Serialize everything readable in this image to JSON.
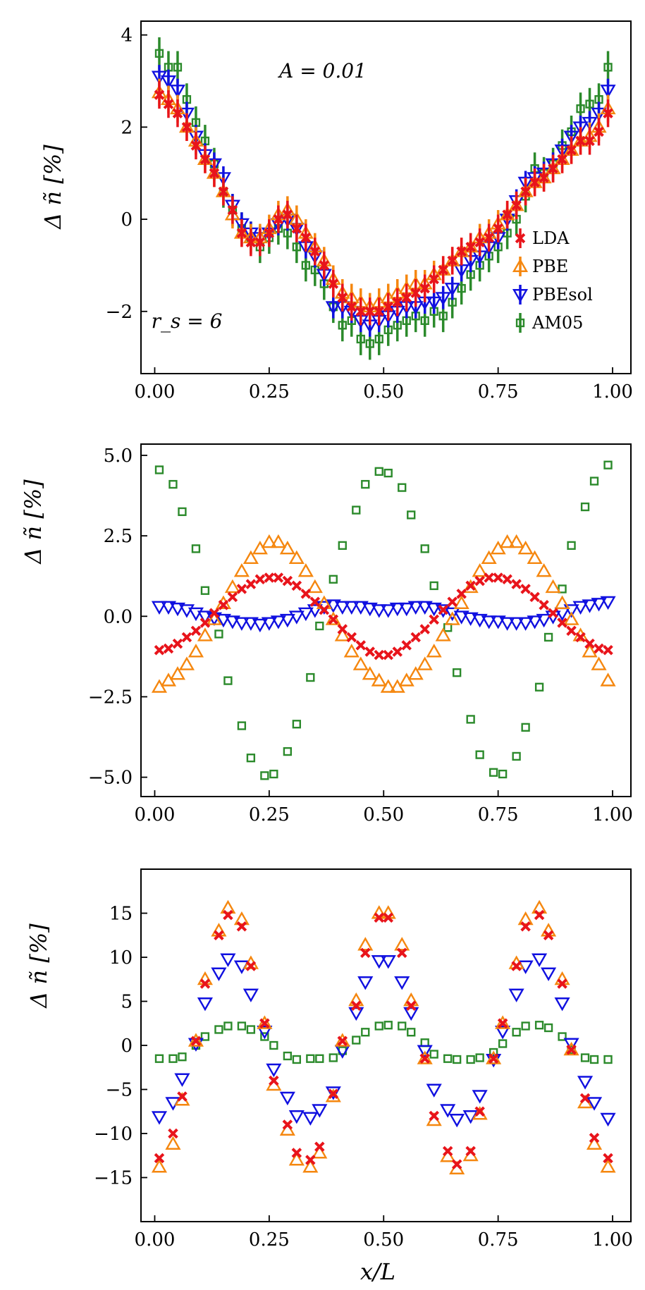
{
  "chart_data": [
    {
      "type": "scatter",
      "panel": "top",
      "ylabel": "Δ ñ [%]",
      "xlabel": "",
      "xlim": [
        -0.03,
        1.04
      ],
      "ylim": [
        -3.35,
        4.3
      ],
      "xticks": [
        0,
        0.25,
        0.5,
        0.75,
        1
      ],
      "xtick_labels": [
        "0.00",
        "0.25",
        "0.50",
        "0.75",
        "1.00"
      ],
      "yticks": [
        -2,
        0,
        2,
        4
      ],
      "ytick_labels": [
        "−2",
        "0",
        "2",
        "4"
      ],
      "annotations": [
        "A = 0.01",
        "r_s = 6"
      ],
      "legend": {
        "placement": "right",
        "entries": [
          "LDA",
          "PBE",
          "PBEsol",
          "AM05"
        ]
      },
      "error_bars": true,
      "x": [
        0.01,
        0.03,
        0.05,
        0.07,
        0.09,
        0.11,
        0.13,
        0.15,
        0.17,
        0.19,
        0.21,
        0.23,
        0.25,
        0.27,
        0.29,
        0.31,
        0.33,
        0.35,
        0.37,
        0.39,
        0.41,
        0.43,
        0.45,
        0.47,
        0.49,
        0.51,
        0.53,
        0.55,
        0.57,
        0.59,
        0.61,
        0.63,
        0.65,
        0.67,
        0.69,
        0.71,
        0.73,
        0.75,
        0.77,
        0.79,
        0.81,
        0.83,
        0.85,
        0.87,
        0.89,
        0.91,
        0.93,
        0.95,
        0.97,
        0.99
      ],
      "series": [
        {
          "name": "LDA",
          "marker": "x",
          "color": "#e8141b",
          "errors": 0.3,
          "values": [
            2.7,
            2.5,
            2.3,
            2.0,
            1.6,
            1.3,
            1.0,
            0.6,
            0.2,
            -0.3,
            -0.5,
            -0.5,
            -0.3,
            0.0,
            0.1,
            -0.2,
            -0.4,
            -0.7,
            -1.0,
            -1.4,
            -1.7,
            -1.9,
            -2.0,
            -2.0,
            -2.0,
            -1.9,
            -1.8,
            -1.7,
            -1.6,
            -1.5,
            -1.3,
            -1.1,
            -0.9,
            -0.7,
            -0.6,
            -0.5,
            -0.4,
            -0.2,
            0.1,
            0.3,
            0.6,
            0.8,
            0.9,
            1.1,
            1.3,
            1.5,
            1.7,
            1.7,
            1.9,
            2.3
          ]
        },
        {
          "name": "PBE",
          "marker": "triangle-up",
          "color": "#f5870f",
          "errors": 0.3,
          "values": [
            2.75,
            2.6,
            2.4,
            2.0,
            1.7,
            1.3,
            1.0,
            0.6,
            0.1,
            -0.3,
            -0.4,
            -0.4,
            -0.2,
            0.1,
            0.2,
            0.0,
            -0.3,
            -0.6,
            -0.9,
            -1.3,
            -1.6,
            -1.7,
            -1.8,
            -1.9,
            -1.8,
            -1.7,
            -1.6,
            -1.5,
            -1.4,
            -1.4,
            -1.2,
            -1.1,
            -0.9,
            -0.7,
            -0.6,
            -0.4,
            -0.3,
            -0.1,
            0.1,
            0.3,
            0.6,
            0.8,
            0.9,
            1.1,
            1.3,
            1.5,
            1.7,
            1.8,
            2.0,
            2.4
          ]
        },
        {
          "name": "PBEsol",
          "marker": "triangle-down",
          "color": "#1010e0",
          "errors": 0.25,
          "values": [
            3.1,
            3.0,
            2.8,
            2.3,
            1.8,
            1.4,
            1.2,
            0.9,
            0.3,
            -0.1,
            -0.3,
            -0.4,
            -0.3,
            -0.1,
            0.0,
            -0.2,
            -0.6,
            -0.8,
            -1.2,
            -1.9,
            -1.9,
            -2.0,
            -2.2,
            -2.3,
            -2.2,
            -2.1,
            -2.0,
            -1.9,
            -1.9,
            -1.8,
            -1.8,
            -1.7,
            -1.5,
            -1.1,
            -0.9,
            -0.8,
            -0.6,
            -0.4,
            0.0,
            0.4,
            0.8,
            0.9,
            1.0,
            1.2,
            1.5,
            1.8,
            2.0,
            2.1,
            2.3,
            2.8
          ]
        },
        {
          "name": "AM05",
          "marker": "square",
          "color": "#2b8a2b",
          "errors": 0.35,
          "values": [
            3.6,
            3.3,
            3.3,
            2.6,
            2.1,
            1.7,
            1.2,
            0.6,
            0.2,
            -0.2,
            -0.4,
            -0.6,
            -0.4,
            -0.2,
            -0.3,
            -0.6,
            -1.0,
            -1.1,
            -1.4,
            -1.9,
            -2.3,
            -2.2,
            -2.6,
            -2.7,
            -2.6,
            -2.4,
            -2.3,
            -2.2,
            -2.1,
            -2.2,
            -2.0,
            -2.1,
            -1.8,
            -1.5,
            -1.2,
            -1.0,
            -0.8,
            -0.6,
            -0.3,
            0.0,
            0.5,
            1.1,
            1.0,
            1.2,
            1.6,
            1.9,
            2.4,
            2.5,
            2.6,
            3.3
          ]
        }
      ]
    },
    {
      "type": "scatter",
      "panel": "middle",
      "ylabel": "Δ ñ [%]",
      "xlabel": "",
      "xlim": [
        -0.03,
        1.04
      ],
      "ylim": [
        -5.6,
        5.35
      ],
      "xticks": [
        0,
        0.25,
        0.5,
        0.75,
        1
      ],
      "xtick_labels": [
        "0.00",
        "0.25",
        "0.50",
        "0.75",
        "1.00"
      ],
      "yticks": [
        -5,
        -2.5,
        0,
        2.5,
        5
      ],
      "ytick_labels": [
        "−5.0",
        "−2.5",
        "0.0",
        "2.5",
        "5.0"
      ],
      "error_bars": false,
      "x": [
        0.01,
        0.03,
        0.05,
        0.07,
        0.09,
        0.11,
        0.13,
        0.15,
        0.17,
        0.19,
        0.21,
        0.23,
        0.25,
        0.27,
        0.29,
        0.31,
        0.33,
        0.35,
        0.37,
        0.39,
        0.41,
        0.43,
        0.45,
        0.47,
        0.49,
        0.51,
        0.53,
        0.55,
        0.57,
        0.59,
        0.61,
        0.63,
        0.65,
        0.67,
        0.69,
        0.71,
        0.73,
        0.75,
        0.77,
        0.79,
        0.81,
        0.83,
        0.85,
        0.87,
        0.89,
        0.91,
        0.93,
        0.95,
        0.97,
        0.99
      ],
      "series": [
        {
          "name": "LDA",
          "marker": "x",
          "color": "#e8141b",
          "values": [
            -1.05,
            -1.0,
            -0.85,
            -0.65,
            -0.45,
            -0.2,
            0.1,
            0.35,
            0.6,
            0.85,
            1.0,
            1.15,
            1.2,
            1.2,
            1.1,
            0.95,
            0.7,
            0.45,
            0.2,
            -0.1,
            -0.4,
            -0.65,
            -0.9,
            -1.1,
            -1.2,
            -1.2,
            -1.1,
            -0.9,
            -0.65,
            -0.4,
            -0.1,
            0.2,
            0.45,
            0.7,
            0.95,
            1.1,
            1.2,
            1.2,
            1.15,
            1.0,
            0.85,
            0.6,
            0.35,
            0.1,
            -0.2,
            -0.45,
            -0.65,
            -0.85,
            -1.0,
            -1.05
          ]
        },
        {
          "name": "PBE",
          "marker": "triangle-up",
          "color": "#f5870f",
          "values": [
            -2.2,
            -2.0,
            -1.8,
            -1.5,
            -1.1,
            -0.6,
            -0.1,
            0.4,
            0.9,
            1.4,
            1.8,
            2.1,
            2.3,
            2.3,
            2.1,
            1.8,
            1.4,
            0.9,
            0.4,
            -0.1,
            -0.6,
            -1.1,
            -1.5,
            -1.8,
            -2.0,
            -2.2,
            -2.2,
            -2.0,
            -1.8,
            -1.5,
            -1.1,
            -0.6,
            -0.1,
            0.4,
            0.9,
            1.4,
            1.8,
            2.1,
            2.3,
            2.3,
            2.1,
            1.8,
            1.4,
            0.9,
            0.4,
            -0.1,
            -0.6,
            -1.1,
            -1.5,
            -2.0
          ]
        },
        {
          "name": "PBEsol",
          "marker": "triangle-down",
          "color": "#1010e0",
          "values": [
            0.3,
            0.3,
            0.25,
            0.2,
            0.1,
            0.0,
            -0.05,
            -0.1,
            -0.15,
            -0.2,
            -0.2,
            -0.25,
            -0.2,
            -0.15,
            -0.1,
            0.0,
            0.1,
            0.2,
            0.3,
            0.35,
            0.3,
            0.3,
            0.3,
            0.25,
            0.2,
            0.2,
            0.25,
            0.25,
            0.3,
            0.3,
            0.25,
            0.2,
            0.1,
            0.0,
            -0.05,
            -0.1,
            -0.15,
            -0.15,
            -0.2,
            -0.2,
            -0.2,
            -0.15,
            -0.1,
            0.0,
            0.1,
            0.2,
            0.3,
            0.35,
            0.4,
            0.45
          ]
        },
        {
          "name": "AM05",
          "marker": "square",
          "color": "#2b8a2b",
          "values": [
            4.55,
            4.1,
            3.25,
            2.1,
            0.8,
            -0.55,
            -2.0,
            -3.4,
            -4.4,
            -4.95,
            -4.9,
            -4.2,
            -3.35,
            -1.9,
            -0.3,
            1.15,
            2.2,
            3.3,
            4.1,
            4.5,
            4.45,
            4.0,
            3.15,
            2.1,
            0.95,
            -0.35,
            -1.75,
            -3.2,
            -4.3,
            -4.85,
            -4.9,
            -4.35,
            -3.45,
            -2.2,
            -0.65,
            0.85,
            2.2,
            3.4,
            4.2,
            4.7
          ]
        }
      ],
      "am05_x": [
        0.01,
        0.04,
        0.06,
        0.09,
        0.11,
        0.14,
        0.16,
        0.19,
        0.21,
        0.24,
        0.26,
        0.29,
        0.31,
        0.34,
        0.36,
        0.39,
        0.41,
        0.44,
        0.46,
        0.49,
        0.51,
        0.54,
        0.56,
        0.59,
        0.61,
        0.64,
        0.66,
        0.69,
        0.71,
        0.74,
        0.76,
        0.79,
        0.81,
        0.84,
        0.86,
        0.89,
        0.91,
        0.94,
        0.96,
        0.99
      ]
    },
    {
      "type": "scatter",
      "panel": "bottom",
      "ylabel": "Δ ñ [%]",
      "xlabel": "x/L",
      "xlim": [
        -0.03,
        1.04
      ],
      "ylim": [
        -20,
        20
      ],
      "xticks": [
        0,
        0.25,
        0.5,
        0.75,
        1
      ],
      "xtick_labels": [
        "0.00",
        "0.25",
        "0.50",
        "0.75",
        "1.00"
      ],
      "yticks": [
        -15,
        -10,
        -5,
        0,
        5,
        10,
        15
      ],
      "ytick_labels": [
        "−15",
        "−10",
        "−5",
        "0",
        "5",
        "10",
        "15"
      ],
      "error_bars": false,
      "x": [
        0.01,
        0.04,
        0.06,
        0.09,
        0.11,
        0.14,
        0.16,
        0.19,
        0.21,
        0.24,
        0.26,
        0.29,
        0.31,
        0.34,
        0.36,
        0.39,
        0.41,
        0.44,
        0.46,
        0.49,
        0.51,
        0.54,
        0.56,
        0.59,
        0.61,
        0.64,
        0.66,
        0.69,
        0.71,
        0.74,
        0.76,
        0.79,
        0.81,
        0.84,
        0.86,
        0.89,
        0.91,
        0.94,
        0.96,
        0.99
      ],
      "series": [
        {
          "name": "LDA",
          "marker": "x",
          "color": "#e8141b",
          "values": [
            -12.8,
            -10.0,
            -5.8,
            0.5,
            7.0,
            12.5,
            14.8,
            13.5,
            9.0,
            2.5,
            -4.0,
            -9.0,
            -12.2,
            -13.0,
            -11.5,
            -5.5,
            0.5,
            4.5,
            10.5,
            14.5,
            14.5,
            10.5,
            4.5,
            -1.5,
            -8.0,
            -12.0,
            -13.5,
            -12.0,
            -7.5,
            -1.5,
            2.5,
            9.0,
            13.5,
            14.8,
            12.5,
            7.0,
            -0.5,
            -6.0,
            -10.5,
            -12.8
          ]
        },
        {
          "name": "PBE",
          "marker": "triangle-up",
          "color": "#f5870f",
          "values": [
            -13.8,
            -11.2,
            -6.2,
            0.5,
            7.5,
            13.0,
            15.6,
            14.3,
            9.3,
            2.5,
            -4.5,
            -9.6,
            -13.0,
            -13.8,
            -12.2,
            -5.8,
            0.5,
            5.1,
            11.4,
            15.0,
            15.0,
            11.4,
            5.1,
            -1.5,
            -8.5,
            -12.6,
            -14.0,
            -12.5,
            -7.8,
            -1.5,
            2.5,
            9.3,
            14.3,
            15.6,
            13.0,
            7.5,
            -0.5,
            -6.5,
            -11.2,
            -13.8
          ]
        },
        {
          "name": "PBEsol",
          "marker": "triangle-down",
          "color": "#1010e0",
          "values": [
            -8.1,
            -6.5,
            -3.8,
            0.2,
            4.8,
            8.2,
            9.8,
            9.0,
            5.8,
            1.6,
            -2.7,
            -5.9,
            -8.0,
            -8.2,
            -7.3,
            -5.3,
            -0.6,
            3.7,
            7.2,
            9.6,
            9.6,
            7.2,
            3.7,
            -0.6,
            -5.0,
            -7.3,
            -8.4,
            -8.0,
            -5.7,
            -1.6,
            1.6,
            5.8,
            9.0,
            9.8,
            8.2,
            4.8,
            0.2,
            -4.1,
            -6.5,
            -8.3
          ]
        },
        {
          "name": "AM05",
          "marker": "square",
          "color": "#2b8a2b",
          "values": [
            -1.5,
            -1.5,
            -1.3,
            0.0,
            1.0,
            1.8,
            2.2,
            2.2,
            1.8,
            1.0,
            0.0,
            -1.2,
            -1.6,
            -1.5,
            -1.5,
            -1.4,
            -0.6,
            0.6,
            1.5,
            2.2,
            2.3,
            2.2,
            1.5,
            0.3,
            -1.0,
            -1.5,
            -1.6,
            -1.6,
            -1.4,
            -0.8,
            0.2,
            1.5,
            2.2,
            2.3,
            2.0,
            1.0,
            -0.5,
            -1.4,
            -1.6,
            -1.6
          ]
        }
      ]
    }
  ]
}
